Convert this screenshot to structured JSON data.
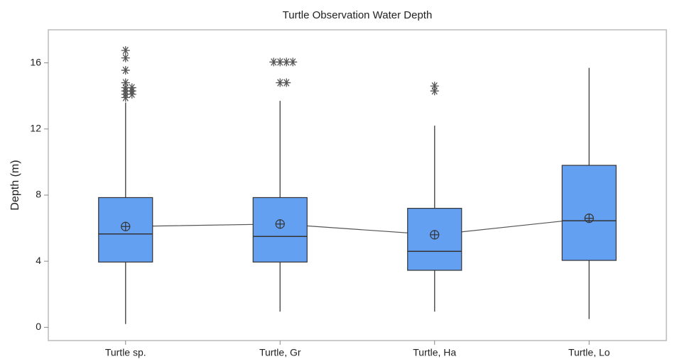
{
  "chart_data": {
    "type": "box",
    "title": "Turtle Observation Water Depth",
    "y_label": "Depth (m)",
    "categories": [
      "Turtle sp.",
      "Turtle, Gr",
      "Turtle, Ha",
      "Turtle, Lo"
    ],
    "color": "#64a0f2",
    "mean_line": true,
    "boxes": [
      {
        "whisker_low": 0.2,
        "q1": 3.95,
        "median": 5.65,
        "q3": 7.85,
        "whisker_high": 13.6,
        "mean": 6.1,
        "outliers": [
          16.75,
          16.3,
          15.55,
          14.8,
          14.5,
          14.5,
          14.3,
          14.3,
          14.1,
          14.1,
          13.9
        ]
      },
      {
        "whisker_low": 0.95,
        "q1": 3.95,
        "median": 5.5,
        "q3": 7.85,
        "whisker_high": 13.7,
        "mean": 6.25,
        "outliers": [
          16.05,
          16.05,
          16.05,
          16.05,
          14.8,
          14.8
        ]
      },
      {
        "whisker_low": 0.95,
        "q1": 3.45,
        "median": 4.6,
        "q3": 7.2,
        "whisker_high": 12.2,
        "mean": 5.6,
        "outliers": [
          14.6,
          14.3
        ]
      },
      {
        "whisker_low": 0.5,
        "q1": 4.05,
        "median": 6.45,
        "q3": 9.8,
        "whisker_high": 15.7,
        "mean": 6.6,
        "outliers": []
      }
    ],
    "ylim": [
      -0.8,
      18
    ],
    "yticks": [
      0,
      4,
      8,
      12,
      16
    ]
  }
}
